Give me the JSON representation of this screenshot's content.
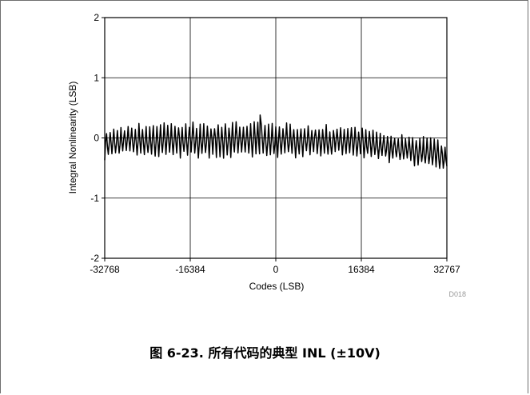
{
  "caption": "图 6-23. 所有代码的典型 INL (±10V)",
  "chart_data": {
    "type": "line",
    "title": "",
    "xlabel": "Codes (LSB)",
    "ylabel": "Integral Nonlinearity (LSB)",
    "figure_id": "D018",
    "xlim": [
      -32768,
      32767
    ],
    "ylim": [
      -2,
      2
    ],
    "xticks": [
      -32768,
      -16384,
      0,
      16384,
      32767
    ],
    "yticks": [
      -2,
      -1,
      0,
      1,
      2
    ],
    "xtick_labels": [
      "-32768",
      "-16384",
      "0",
      "16384",
      "32767"
    ],
    "ytick_labels": [
      "-2",
      "-1",
      "0",
      "1",
      "2"
    ],
    "grid": true,
    "series": [
      {
        "color": "#000000",
        "envelope_x": [
          -32768,
          -28672,
          -24576,
          -20480,
          -16384,
          -12288,
          -8192,
          -4096,
          0,
          4096,
          8192,
          12288,
          16384,
          20480,
          24576,
          28672,
          32767
        ],
        "upper": [
          0.12,
          0.2,
          0.23,
          0.24,
          0.25,
          0.24,
          0.24,
          0.24,
          0.24,
          0.22,
          0.2,
          0.18,
          0.14,
          0.09,
          0.04,
          0.0,
          -0.08
        ],
        "lower": [
          -0.35,
          -0.3,
          -0.33,
          -0.33,
          -0.32,
          -0.33,
          -0.32,
          -0.32,
          -0.33,
          -0.32,
          -0.3,
          -0.3,
          -0.33,
          -0.38,
          -0.42,
          -0.48,
          -0.62
        ],
        "cycles": 95,
        "peak": {
          "x": -3000,
          "y": 0.38
        }
      }
    ]
  }
}
